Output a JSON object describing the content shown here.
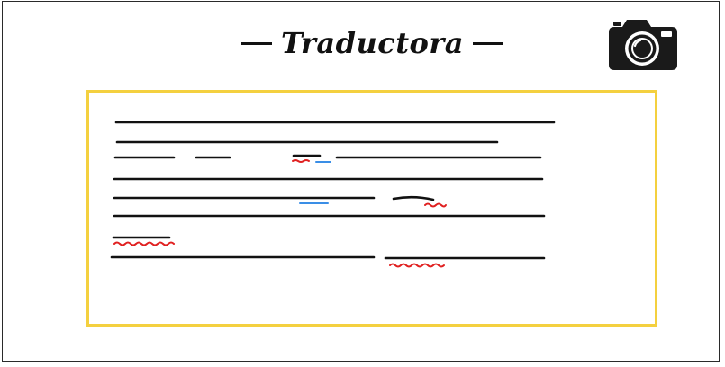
{
  "app": {
    "title": "Traductora"
  },
  "toolbar": {
    "camera_icon": "camera-icon"
  },
  "colors": {
    "frame": "#2a2a2a",
    "text_box_border": "#f4d03f",
    "text_line": "#111111",
    "misspelling_underline": "#e02020",
    "grammar_underline": "#3a8ee6"
  }
}
